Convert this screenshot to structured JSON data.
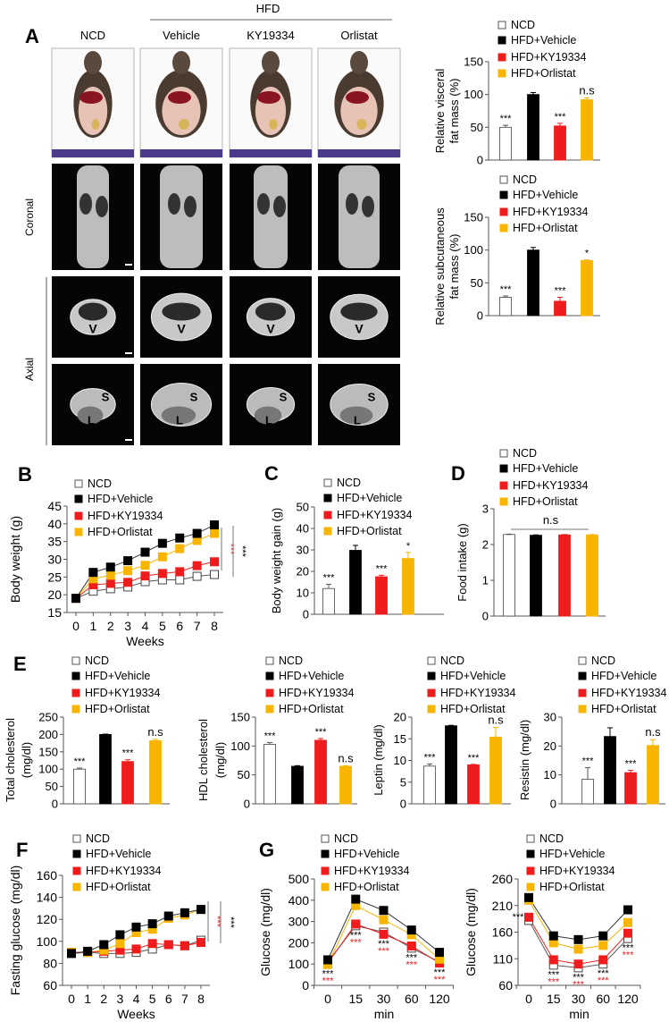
{
  "legend": [
    "NCD",
    "HFD+Vehicle",
    "HFD+KY19334",
    "HFD+Orlistat"
  ],
  "colors": {
    "NCD": "#ffffff",
    "HFD+Vehicle": "#000000",
    "HFD+KY19334": "#ee1c1c",
    "HFD+Orlistat": "#f7b500"
  },
  "panel_letters": [
    "A",
    "B",
    "C",
    "D",
    "E",
    "F",
    "G"
  ],
  "panelA": {
    "group_label": "HFD",
    "columns": [
      "NCD",
      "Vehicle",
      "KY19334",
      "Orlistat"
    ],
    "row_labels": {
      "coronal": "Coronal",
      "axial": "Axial"
    },
    "axial_marks": {
      "visceral": "V",
      "subcutaneous": "S",
      "liver": "L"
    }
  },
  "chart_data": [
    {
      "id": "visceral",
      "type": "bar",
      "ylabel": [
        "Relative visceral",
        "fat mass (%)"
      ],
      "ylim": [
        0,
        150
      ],
      "yticks": [
        0,
        50,
        100,
        150
      ],
      "categories": [
        "NCD",
        "HFD+Vehicle",
        "HFD+KY19334",
        "HFD+Orlistat"
      ],
      "values": [
        50,
        100,
        52,
        92
      ],
      "errors": [
        3,
        3,
        4,
        3
      ],
      "annotations": [
        "***",
        "",
        "***",
        "n.s"
      ]
    },
    {
      "id": "subcut",
      "type": "bar",
      "ylabel": [
        "Relative subcutaneous",
        "fat mass (%)"
      ],
      "ylim": [
        0,
        150
      ],
      "yticks": [
        0,
        50,
        100,
        150
      ],
      "categories": [
        "NCD",
        "HFD+Vehicle",
        "HFD+KY19334",
        "HFD+Orlistat"
      ],
      "values": [
        28,
        100,
        22,
        84
      ],
      "errors": [
        2,
        4,
        6,
        1
      ],
      "annotations": [
        "***",
        "",
        "***",
        "*"
      ]
    },
    {
      "id": "C",
      "type": "bar",
      "ylabel": [
        "Body weight gain (g)"
      ],
      "ylim": [
        0,
        50
      ],
      "yticks": [
        0,
        10,
        20,
        30,
        40,
        50
      ],
      "categories": [
        "NCD",
        "HFD+Vehicle",
        "HFD+KY19334",
        "HFD+Orlistat"
      ],
      "values": [
        12,
        29.8,
        17.5,
        26
      ],
      "errors": [
        2,
        2.3,
        0.7,
        2.8
      ],
      "annotations": [
        "***",
        "",
        "***",
        "*"
      ]
    },
    {
      "id": "D",
      "type": "bar",
      "ylabel": [
        "Food intake (g)"
      ],
      "ylim": [
        0,
        3
      ],
      "yticks": [
        0,
        1,
        2,
        3
      ],
      "categories": [
        "NCD",
        "HFD+Vehicle",
        "HFD+KY19334",
        "HFD+Orlistat"
      ],
      "values": [
        2.28,
        2.26,
        2.27,
        2.27
      ],
      "errors": [
        0.01,
        0.01,
        0.01,
        0.01
      ],
      "annotations": [
        "",
        "",
        "",
        ""
      ],
      "group_annotation": "n.s"
    },
    {
      "id": "E0",
      "type": "bar",
      "ylabel": [
        "Total cholesterol",
        "(mg/dl)"
      ],
      "ylim": [
        0,
        250
      ],
      "yticks": [
        0,
        50,
        100,
        150,
        200,
        250
      ],
      "categories": [
        "NCD",
        "HFD+Vehicle",
        "HFD+KY19334",
        "HFD+Orlistat"
      ],
      "values": [
        100,
        200,
        122,
        182
      ],
      "errors": [
        3,
        1,
        5,
        4
      ],
      "annotations": [
        "***",
        "",
        "***",
        "n.s"
      ]
    },
    {
      "id": "E1",
      "type": "bar",
      "ylabel": [
        "HDL cholesterol",
        "(mg/dl)"
      ],
      "ylim": [
        0,
        150
      ],
      "yticks": [
        0,
        50,
        100,
        150
      ],
      "categories": [
        "NCD",
        "HFD+Vehicle",
        "HFD+KY19334",
        "HFD+Orlistat"
      ],
      "values": [
        103,
        65,
        110,
        65
      ],
      "errors": [
        3,
        1,
        3,
        1
      ],
      "annotations": [
        "***",
        "",
        "***",
        "n.s"
      ]
    },
    {
      "id": "E2",
      "type": "bar",
      "ylabel": [
        "Leptin (mg/dl)"
      ],
      "ylim": [
        0,
        20
      ],
      "yticks": [
        0,
        5,
        10,
        15,
        20
      ],
      "categories": [
        "NCD",
        "HFD+Vehicle",
        "HFD+KY19334",
        "HFD+Orlistat"
      ],
      "values": [
        8.7,
        18,
        9,
        15.4
      ],
      "errors": [
        0.5,
        0.1,
        0.1,
        2.2
      ],
      "annotations": [
        "***",
        "",
        "***",
        "n.s"
      ]
    },
    {
      "id": "E3",
      "type": "bar",
      "ylabel": [
        "Resistin (mg/dl)"
      ],
      "ylim": [
        0,
        30
      ],
      "yticks": [
        0,
        10,
        20,
        30
      ],
      "categories": [
        "NCD",
        "HFD+Vehicle",
        "HFD+KY19334",
        "HFD+Orlistat"
      ],
      "values": [
        8.5,
        23.3,
        10.8,
        20.2
      ],
      "errors": [
        4,
        3,
        0.8,
        2
      ],
      "annotations": [
        "***",
        "",
        "***",
        "n.s"
      ]
    },
    {
      "id": "B",
      "type": "line",
      "ylabel": "Body weight (g)",
      "xlabel": "Weeks",
      "ylim": [
        15,
        45
      ],
      "yticks": [
        15,
        20,
        25,
        30,
        35,
        40,
        45
      ],
      "x": [
        0,
        1,
        2,
        3,
        4,
        5,
        6,
        7,
        8
      ],
      "series": [
        {
          "name": "NCD",
          "values": [
            19,
            21,
            21.7,
            22.2,
            23.7,
            24.2,
            24.2,
            25.2,
            25.7
          ]
        },
        {
          "name": "HFD+Vehicle",
          "values": [
            19,
            26.3,
            27.8,
            29.6,
            32,
            34.5,
            36,
            37.3,
            39.7
          ]
        },
        {
          "name": "HFD+KY19334",
          "values": [
            19,
            22.8,
            23.2,
            23.5,
            25.3,
            26,
            26.5,
            28.2,
            29.3
          ]
        },
        {
          "name": "HFD+Orlistat",
          "values": [
            19,
            24.5,
            25.5,
            26.8,
            28.3,
            30.7,
            33,
            35.3,
            37.3
          ]
        }
      ],
      "significance": [
        {
          "label": "***",
          "color": "#ee1c1c"
        },
        {
          "label": "***",
          "color": "#000000"
        }
      ]
    },
    {
      "id": "F",
      "type": "line",
      "ylabel": "Fasting glucose (mg/dl)",
      "xlabel": "Weeks",
      "ylim": [
        60,
        160
      ],
      "yticks": [
        60,
        80,
        100,
        120,
        140,
        160
      ],
      "x": [
        0,
        1,
        2,
        3,
        4,
        5,
        6,
        7,
        8
      ],
      "series": [
        {
          "name": "NCD",
          "values": [
            89,
            90,
            89,
            89,
            90,
            93,
            97,
            96,
            101
          ]
        },
        {
          "name": "HFD+Vehicle",
          "values": [
            89,
            91,
            97,
            106,
            113,
            116,
            123,
            126,
            129
          ]
        },
        {
          "name": "HFD+KY19334",
          "values": [
            90,
            90,
            91,
            92,
            93,
            98,
            97,
            96,
            99
          ]
        },
        {
          "name": "HFD+Orlistat",
          "values": [
            90,
            90,
            92,
            98,
            108,
            111,
            121,
            124,
            129
          ]
        }
      ],
      "significance": [
        {
          "label": "***",
          "color": "#ee1c1c"
        },
        {
          "label": "***",
          "color": "#000000"
        }
      ]
    },
    {
      "id": "G1",
      "type": "line",
      "ylabel": "Glucose (mg/dl)",
      "xlabel": "min",
      "ylim": [
        0,
        500
      ],
      "yticks": [
        0,
        100,
        200,
        300,
        400,
        500
      ],
      "x": [
        0,
        15,
        30,
        60,
        120
      ],
      "series": [
        {
          "name": "NCD",
          "values": [
            110,
            280,
            250,
            175,
            110
          ]
        },
        {
          "name": "HFD+Vehicle",
          "values": [
            120,
            405,
            352,
            260,
            155
          ]
        },
        {
          "name": "HFD+KY19334",
          "values": [
            105,
            288,
            240,
            185,
            105
          ]
        },
        {
          "name": "HFD+Orlistat",
          "values": [
            98,
            375,
            308,
            238,
            123
          ]
        }
      ],
      "point_annotations": [
        [
          "***",
          "***"
        ],
        [
          "***",
          "***"
        ],
        [
          "***",
          "***"
        ],
        [
          "***",
          "***"
        ],
        [
          "***",
          "***"
        ]
      ]
    },
    {
      "id": "G2",
      "type": "line",
      "ylabel": "Glucose (mg/dl)",
      "xlabel": "min",
      "ylim": [
        60,
        260
      ],
      "yticks": [
        60,
        110,
        160,
        210,
        260
      ],
      "x": [
        0,
        15,
        30,
        60,
        120
      ],
      "series": [
        {
          "name": "NCD",
          "values": [
            182,
            98,
            93,
            100,
            148
          ]
        },
        {
          "name": "HFD+Vehicle",
          "values": [
            225,
            153,
            146,
            153,
            202
          ]
        },
        {
          "name": "HFD+KY19334",
          "values": [
            188,
            108,
            100,
            108,
            158
          ]
        },
        {
          "name": "HFD+Orlistat",
          "values": [
            220,
            140,
            128,
            135,
            178
          ]
        }
      ],
      "point_annotations": [
        [
          "***",
          ""
        ],
        [
          "***",
          "***"
        ],
        [
          "***",
          "***"
        ],
        [
          "***",
          "***"
        ],
        [
          "***",
          "***"
        ]
      ]
    }
  ]
}
